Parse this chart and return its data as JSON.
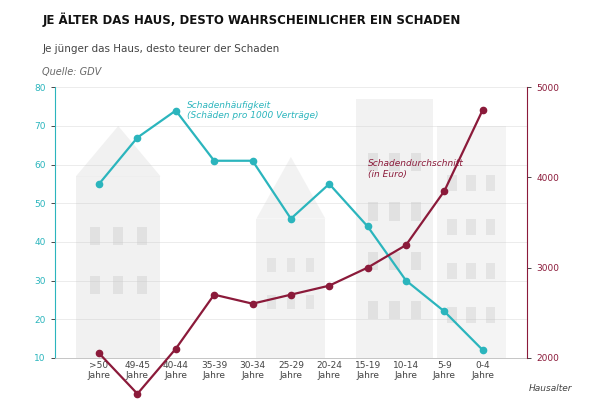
{
  "categories": [
    ">50\nJahre",
    "49-45\nJahre",
    "40-44\nJahre",
    "35-39\nJahre",
    "30-34\nJahre",
    "25-29\nJahre",
    "20-24\nJahre",
    "15-19\nJahre",
    "10-14\nJahre",
    "5-9\nJahre",
    "0-4\nJahre"
  ],
  "frequency": [
    55,
    67,
    74,
    61,
    61,
    46,
    55,
    44,
    30,
    22,
    12
  ],
  "average_damage": [
    2050,
    1600,
    2100,
    2700,
    2600,
    2700,
    2800,
    3000,
    3250,
    3850,
    4750
  ],
  "title": "JE ÄLTER DAS HAUS, DESTO WAHRSCHEINLICHER EIN SCHADEN",
  "subtitle": "Je jünger das Haus, desto teurer der Schaden",
  "source": "Quelle: GDV",
  "xlabel": "Hausalter",
  "freq_label": "Schadenhäufigkeit\n(Schäden pro 1000 Verträge)",
  "damage_label": "Schadendurchschnitt\n(in Euro)",
  "ylim_left": [
    10,
    80
  ],
  "ylim_right": [
    2000,
    5000
  ],
  "yticks_left": [
    10,
    20,
    30,
    40,
    50,
    60,
    70,
    80
  ],
  "yticks_right": [
    2000,
    3000,
    4000,
    5000
  ],
  "freq_color": "#2BB5BD",
  "damage_color": "#8B1A3A",
  "bg_color": "#FFFFFF",
  "building_color": "#C8C8C8",
  "title_fontsize": 8.5,
  "subtitle_fontsize": 7.5,
  "source_fontsize": 7,
  "tick_fontsize": 6.5,
  "label_fontsize": 6.5
}
